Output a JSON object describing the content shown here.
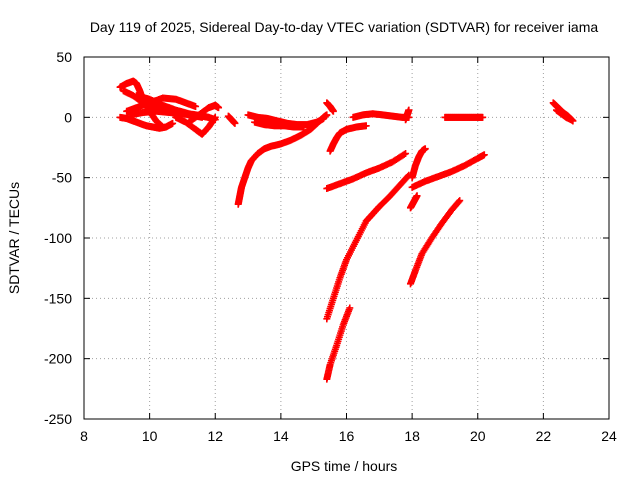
{
  "chart_data": {
    "type": "scatter",
    "title": "Day 119 of 2025, Sidereal Day-to-day VTEC variation (SDTVAR) for receiver iama",
    "xlabel": "GPS time / hours",
    "ylabel": "SDTVAR / TECUs",
    "xlim": [
      8,
      24
    ],
    "ylim": [
      -250,
      50
    ],
    "xticks": [
      8,
      10,
      12,
      14,
      16,
      18,
      20,
      22,
      24
    ],
    "yticks": [
      50,
      0,
      -50,
      -100,
      -150,
      -200,
      -250
    ],
    "grid": true,
    "marker": "+",
    "color": "#ff0000",
    "series": [
      {
        "x": [
          9.1,
          9.3,
          9.5,
          9.7,
          9.9,
          10.1,
          10.3,
          10.5,
          10.7
        ],
        "y": [
          0,
          -1,
          -3,
          -5,
          -7,
          -8,
          -9,
          -8,
          -5
        ]
      },
      {
        "x": [
          9.1,
          9.3,
          9.5,
          9.6,
          9.7,
          9.8,
          10.0,
          10.2,
          10.4
        ],
        "y": [
          25,
          28,
          30,
          28,
          22,
          14,
          5,
          -3,
          -8
        ]
      },
      {
        "x": [
          9.2,
          9.5,
          9.8,
          10.1,
          10.4,
          10.8,
          11.2,
          11.6
        ],
        "y": [
          22,
          18,
          12,
          8,
          6,
          4,
          2,
          0
        ]
      },
      {
        "x": [
          9.3,
          9.6,
          10.0,
          10.4,
          10.8,
          11.1,
          11.4
        ],
        "y": [
          5,
          8,
          12,
          16,
          15,
          12,
          9
        ]
      },
      {
        "x": [
          9.4,
          9.8,
          10.2,
          10.6,
          11.0,
          11.4,
          11.8,
          12.0
        ],
        "y": [
          2,
          4,
          5,
          4,
          3,
          2,
          0,
          -2
        ]
      },
      {
        "x": [
          9.6,
          10.0,
          10.4,
          10.8,
          11.2,
          11.6,
          11.8
        ],
        "y": [
          18,
          15,
          10,
          6,
          3,
          1,
          0
        ]
      },
      {
        "x": [
          10.8,
          11.1,
          11.4,
          11.6,
          11.8,
          12.0
        ],
        "y": [
          0,
          -4,
          -10,
          -14,
          -8,
          0
        ]
      },
      {
        "x": [
          11.2,
          11.5,
          11.8,
          12.0,
          12.1
        ],
        "y": [
          -4,
          2,
          8,
          10,
          8
        ]
      },
      {
        "x": [
          12.4,
          12.5,
          12.6
        ],
        "y": [
          1,
          -2,
          -5
        ]
      },
      {
        "x": [
          12.7,
          12.75,
          12.8,
          12.9,
          13.0,
          13.1,
          13.3,
          13.5,
          13.7,
          14.0,
          14.3,
          14.6,
          14.9,
          15.1,
          15.3,
          15.4
        ],
        "y": [
          -72,
          -65,
          -58,
          -50,
          -42,
          -36,
          -30,
          -26,
          -24,
          -22,
          -19,
          -15,
          -10,
          -5,
          0,
          2
        ]
      },
      {
        "x": [
          13.0,
          13.3,
          13.6,
          13.9,
          14.2,
          14.5,
          14.8,
          15.1,
          15.3
        ],
        "y": [
          2,
          0,
          -1,
          -3,
          -5,
          -6,
          -6,
          -4,
          -1
        ]
      },
      {
        "x": [
          13.2,
          13.5,
          13.8,
          14.1,
          14.4,
          14.7
        ],
        "y": [
          -4,
          -6,
          -7,
          -7,
          -8,
          -8
        ]
      },
      {
        "x": [
          15.4,
          15.5,
          15.6
        ],
        "y": [
          12,
          9,
          5
        ]
      },
      {
        "x": [
          15.5,
          15.6,
          15.7,
          15.8,
          16.0,
          16.3,
          16.6
        ],
        "y": [
          -28,
          -22,
          -17,
          -13,
          -10,
          -8,
          -7
        ]
      },
      {
        "x": [
          16.2,
          16.5,
          16.8,
          17.1,
          17.4,
          17.7,
          17.9
        ],
        "y": [
          0,
          2,
          3,
          2,
          1,
          0,
          0
        ]
      },
      {
        "x": [
          17.8,
          17.85,
          17.9
        ],
        "y": [
          -2,
          2,
          6
        ]
      },
      {
        "x": [
          15.4,
          15.8,
          16.2,
          16.6,
          17.0,
          17.4,
          17.8
        ],
        "y": [
          -59,
          -55,
          -51,
          -46,
          -42,
          -37,
          -30
        ]
      },
      {
        "x": [
          15.4,
          15.6,
          15.8,
          16.0,
          16.3,
          16.6,
          16.8,
          17.0,
          17.3,
          17.6,
          17.9
        ],
        "y": [
          -167,
          -150,
          -133,
          -118,
          -102,
          -86,
          -80,
          -74,
          -66,
          -57,
          -48
        ]
      },
      {
        "x": [
          15.4,
          15.5,
          15.7,
          15.9,
          16.1
        ],
        "y": [
          -217,
          -205,
          -189,
          -172,
          -158
        ]
      },
      {
        "x": [
          17.95,
          18.05,
          18.15
        ],
        "y": [
          -75,
          -70,
          -65
        ]
      },
      {
        "x": [
          18.0,
          18.1,
          18.2,
          18.3,
          18.4
        ],
        "y": [
          -50,
          -40,
          -33,
          -28,
          -26
        ]
      },
      {
        "x": [
          18.0,
          18.4,
          18.8,
          19.2,
          19.6,
          20.0,
          20.2
        ],
        "y": [
          -58,
          -53,
          -49,
          -45,
          -40,
          -34,
          -31
        ]
      },
      {
        "x": [
          17.95,
          18.1,
          18.3,
          18.6,
          18.9,
          19.2,
          19.45
        ],
        "y": [
          -138,
          -127,
          -113,
          -100,
          -88,
          -77,
          -69
        ]
      },
      {
        "x": [
          19.0,
          19.2,
          19.4,
          19.6,
          19.8,
          20.0,
          20.15
        ],
        "y": [
          0,
          0,
          0,
          0,
          0,
          0,
          0
        ]
      },
      {
        "x": [
          22.3,
          22.45,
          22.6,
          22.75,
          22.9
        ],
        "y": [
          12,
          8,
          4,
          1,
          -3
        ]
      },
      {
        "x": [
          22.4,
          22.55,
          22.7,
          22.85
        ],
        "y": [
          6,
          3,
          0,
          -2
        ]
      }
    ]
  }
}
